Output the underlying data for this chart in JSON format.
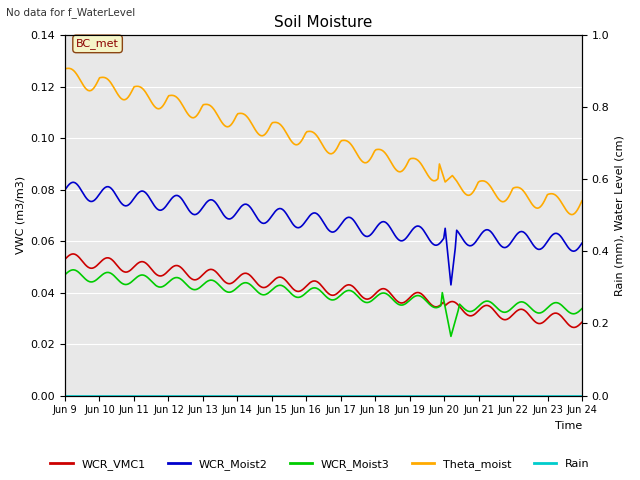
{
  "title": "Soil Moisture",
  "top_left_text": "No data for f_WaterLevel",
  "ylabel_left": "VWC (m3/m3)",
  "ylabel_right": "Rain (mm), Water Level (cm)",
  "xlabel": "Time",
  "xlim": [
    0,
    15
  ],
  "ylim_left": [
    0.0,
    0.14
  ],
  "ylim_right": [
    0.0,
    1.0
  ],
  "xtick_labels": [
    "Jun 9",
    "Jun 10",
    "Jun 11",
    "Jun 12",
    "Jun 13",
    "Jun 14",
    "Jun 15",
    "Jun 16",
    "Jun 17",
    "Jun 18",
    "Jun 19",
    "Jun 20",
    "Jun 21",
    "Jun 22",
    "Jun 23",
    "Jun 24"
  ],
  "bg_color": "#e8e8e8",
  "fig_color": "#ffffff",
  "bc_met_label": "BC_met",
  "legend_entries": [
    "WCR_VMC1",
    "WCR_Moist2",
    "WCR_Moist3",
    "Theta_moist",
    "Rain"
  ],
  "legend_colors": [
    "#cc0000",
    "#0000cc",
    "#00cc00",
    "#ffaa00",
    "#00cccc"
  ],
  "line_width": 1.2,
  "figsize": [
    6.4,
    4.8
  ],
  "dpi": 100
}
